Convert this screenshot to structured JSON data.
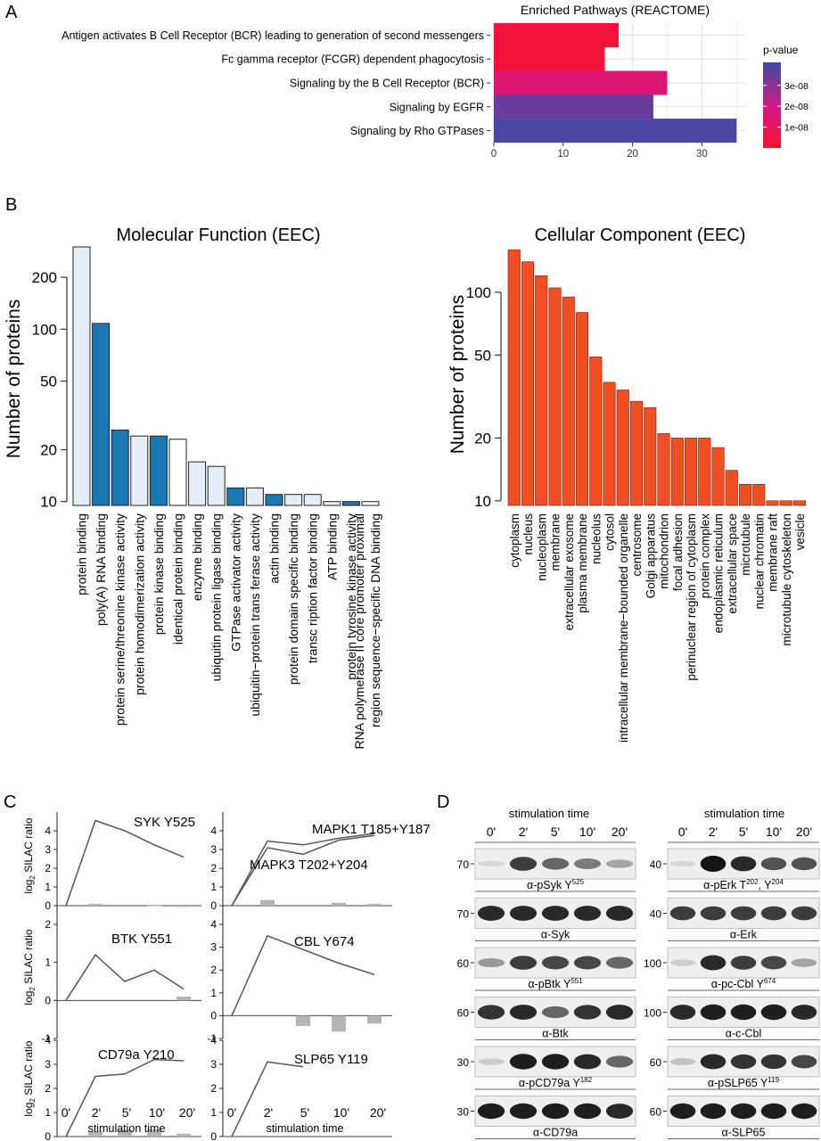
{
  "panel_letters": [
    "A",
    "B",
    "C",
    "D"
  ],
  "colors": {
    "bar_blue": "#1b77b4",
    "bar_light": "#e5eef8",
    "bar_white": "#ffffff",
    "cc_orange": "#f04e23",
    "line_gray": "#555555",
    "silac_bar": "#b4b4b4",
    "pval_high": "#3f49a6",
    "pval_mid": "#d9177f",
    "pval_low": "#f7102d"
  },
  "chart_data": [
    {
      "id": "A",
      "type": "bar",
      "orientation": "horizontal",
      "title": "Enriched Pathways (REACTOME)",
      "categories": [
        "Antigen activates B Cell Receptor (BCR) leading to generation of second messengers",
        "Fc gamma receptor (FCGR) dependent phagocytosis",
        "Signaling by the B Cell Receptor (BCR)",
        "Signaling by EGFR",
        "Signaling by Rho GTPases"
      ],
      "values": [
        18,
        16,
        25,
        23,
        35
      ],
      "pvalues": [
        3e-09,
        2e-09,
        1.6e-08,
        3.5e-08,
        3.9e-08
      ],
      "xlim": [
        -0.5,
        36.5
      ],
      "xticks": [
        0,
        10,
        20,
        30
      ],
      "grid": true,
      "legend": {
        "title": "p-value",
        "ticks": [
          "3e-08",
          "2e-08",
          "1e-08"
        ],
        "tick_values": [
          3e-08,
          2e-08,
          1e-08
        ],
        "range": [
          0,
          4.1e-08
        ],
        "placement": "right"
      }
    },
    {
      "id": "B-left",
      "type": "bar",
      "title": "Molecular Function (EEC)",
      "ylabel": "Number of proteins",
      "yscale": "log",
      "ylim": [
        9.5,
        300
      ],
      "yticks": [
        10,
        20,
        50,
        100,
        200
      ],
      "categories": [
        "protein binding",
        "poly(A) RNA binding",
        "protein serine/threonine kinase activity",
        "protein homodimerization activity",
        "protein kinase binding",
        "identical protein binding",
        "enzyme binding",
        "ubiquitin protein ligase binding",
        "GTPase activator activity",
        "ubiquitin−protein trans ferase activity",
        "actin binding",
        "protein domain specific binding",
        "transc ription factor binding",
        "ATP binding",
        "protein tyrosine kinase activity",
        "RNA polymerase II core promoter proximal region sequence−specific DNA binding"
      ],
      "values": [
        300,
        108,
        26,
        24,
        24,
        23,
        17,
        16,
        12,
        12,
        11,
        11,
        11,
        10,
        10,
        10
      ],
      "fills": [
        "light",
        "blue",
        "blue",
        "light",
        "blue",
        "white",
        "light",
        "light",
        "blue",
        "light",
        "blue",
        "light",
        "light",
        "light",
        "blue",
        "white"
      ]
    },
    {
      "id": "B-right",
      "type": "bar",
      "title": "Cellular Component (EEC)",
      "ylabel": "Number of proteins",
      "yscale": "log",
      "ylim": [
        9.5,
        165
      ],
      "yticks": [
        10,
        20,
        50,
        100
      ],
      "categories": [
        "cytoplasm",
        "nucleus",
        "nucleoplasm",
        "membrane",
        "extracellular exosome",
        "plasma membrane",
        "nucleolus",
        "cytosol",
        "intracellular membrane−bounded organelle",
        "centrosome",
        "Golgi apparatus",
        "mitochondrion",
        "focal adhesion",
        "perinuclear region of cytoplasm",
        "protein complex",
        "endoplasmic reticulum",
        "extracellular space",
        "microtubule",
        "nuclear chromatin",
        "membrane raft",
        "microtubule cytoskeleton",
        "vesicle"
      ],
      "values": [
        160,
        140,
        120,
        105,
        95,
        80,
        49,
        37,
        34,
        30,
        28,
        21,
        20,
        20,
        20,
        18,
        14,
        12,
        12,
        10,
        10,
        10
      ]
    },
    {
      "id": "C",
      "type": "line",
      "ylabel": "log2 SILAC ratio",
      "xlabel": "stimulation time",
      "categories": [
        "0'",
        "2'",
        "5'",
        "10'",
        "20'"
      ],
      "subplots": [
        {
          "title": "SYK Y525",
          "ylim": [
            -1,
            5
          ],
          "yticks": [
            0,
            1,
            2,
            3,
            4
          ],
          "series": [
            {
              "values": [
                0,
                4.55,
                4.0,
                3.25,
                2.6
              ]
            }
          ],
          "bars": [
            0,
            0.1,
            0,
            0.05,
            -0.05
          ]
        },
        {
          "title": "MAPK1 T185+Y187",
          "ylim": [
            -1,
            5
          ],
          "yticks": [
            0,
            1,
            2,
            3,
            4
          ],
          "series": [
            {
              "name": "MAPK1 T185+Y187",
              "values": [
                0,
                3.45,
                3.25,
                3.6,
                3.85
              ]
            },
            {
              "name": "MAPK3 T202+Y204",
              "values": [
                0,
                3.1,
                2.75,
                3.5,
                3.75
              ]
            }
          ],
          "bars": [
            0,
            0.3,
            0,
            0.15,
            0.1
          ]
        },
        {
          "title": "BTK Y551",
          "ylim": [
            -1,
            2
          ],
          "yticks": [
            -1,
            0,
            1,
            2
          ],
          "series": [
            {
              "values": [
                0,
                1.2,
                0.5,
                0.8,
                0.3
              ]
            }
          ],
          "bars": [
            0,
            0,
            0,
            0,
            0.1
          ]
        },
        {
          "title": "CBL Y674",
          "ylim": [
            -1,
            4
          ],
          "yticks": [
            -1,
            0,
            1,
            2,
            3,
            4
          ],
          "series": [
            {
              "values": [
                0,
                3.5,
                2.9,
                2.3,
                1.8
              ]
            }
          ],
          "bars": [
            0,
            0,
            -0.45,
            -0.7,
            -0.35
          ]
        },
        {
          "title": "CD79a Y210",
          "ylim": [
            0,
            4
          ],
          "yticks": [
            0,
            1,
            2,
            3,
            4
          ],
          "series": [
            {
              "values": [
                0,
                2.5,
                2.6,
                3.2,
                3.15
              ]
            }
          ],
          "bars": [
            0,
            0.22,
            0.28,
            0.3,
            0.12
          ]
        },
        {
          "title": "SLP65 Y119",
          "ylim": [
            0,
            4
          ],
          "yticks": [
            0,
            1,
            2,
            3,
            4
          ],
          "series": [
            {
              "values": [
                0,
                3.1,
                2.9,
                null,
                null
              ]
            }
          ],
          "bars": [
            0,
            0,
            0,
            0,
            0
          ]
        }
      ]
    }
  ],
  "panel_d": {
    "header": "stimulation time",
    "lanes": [
      "0'",
      "2'",
      "5'",
      "10'",
      "20'"
    ],
    "left_blots": [
      {
        "mw": "70",
        "label": "α-pSyk Y",
        "sup": "525",
        "intensity": [
          0.05,
          0.8,
          0.6,
          0.5,
          0.3
        ]
      },
      {
        "mw": "70",
        "label": "α-Syk",
        "sup": "",
        "intensity": [
          0.9,
          0.9,
          0.9,
          0.9,
          0.9
        ]
      },
      {
        "mw": "60",
        "label": "α-pBtk Y",
        "sup": "551",
        "intensity": [
          0.35,
          0.8,
          0.75,
          0.75,
          0.6
        ]
      },
      {
        "mw": "60",
        "label": "α-Btk",
        "sup": "",
        "intensity": [
          0.85,
          0.9,
          0.6,
          0.85,
          0.9
        ]
      },
      {
        "mw": "30",
        "label": "α-pCD79a Y",
        "sup": "182",
        "intensity": [
          0.1,
          0.95,
          0.95,
          0.9,
          0.6
        ]
      },
      {
        "mw": "30",
        "label": "α-CD79a",
        "sup": "",
        "intensity": [
          0.95,
          0.95,
          0.95,
          0.95,
          0.9
        ]
      }
    ],
    "right_blots": [
      {
        "mw": "40",
        "label": "α-pErk T",
        "sup": "202",
        "label2": ", Y",
        "sup2": "204",
        "intensity": [
          0.05,
          1,
          0.9,
          0.7,
          0.7
        ]
      },
      {
        "mw": "40",
        "label": "α-Erk",
        "sup": "",
        "intensity": [
          0.8,
          0.8,
          0.8,
          0.8,
          0.8
        ]
      },
      {
        "mw": "100",
        "label": "α-pc-Cbl Y",
        "sup": "674",
        "intensity": [
          0.1,
          0.9,
          0.8,
          0.75,
          0.3
        ]
      },
      {
        "mw": "100",
        "label": "α-c-Cbl",
        "sup": "",
        "intensity": [
          0.9,
          0.95,
          0.95,
          0.95,
          0.9
        ]
      },
      {
        "mw": "60",
        "label": "α-pSLP65 Y",
        "sup": "119",
        "intensity": [
          0.15,
          0.9,
          0.85,
          0.85,
          0.75
        ]
      },
      {
        "mw": "60",
        "label": "α-SLP65",
        "sup": "",
        "intensity": [
          0.95,
          0.95,
          0.95,
          0.95,
          0.95
        ]
      }
    ]
  }
}
